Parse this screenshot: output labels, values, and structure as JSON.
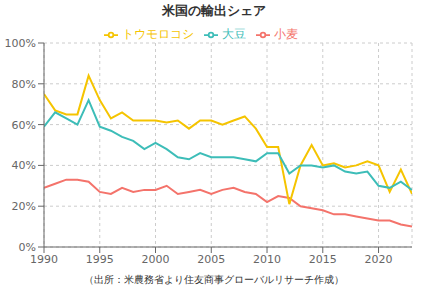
{
  "chart_data": {
    "type": "line",
    "title": "米国の輸出シェア",
    "subtitle": "（出所：米農務省より住友商事グローバルリサーチ作成）",
    "x": [
      1990,
      1991,
      1992,
      1993,
      1994,
      1995,
      1996,
      1997,
      1998,
      1999,
      2000,
      2001,
      2002,
      2003,
      2004,
      2005,
      2006,
      2007,
      2008,
      2009,
      2010,
      2011,
      2012,
      2013,
      2014,
      2015,
      2016,
      2017,
      2018,
      2019,
      2020,
      2021,
      2022,
      2023
    ],
    "series": [
      {
        "name": "小麦",
        "color": "#f4736b",
        "values": [
          29,
          31,
          33,
          33,
          32,
          27,
          26,
          29,
          27,
          28,
          28,
          30,
          26,
          27,
          28,
          26,
          28,
          29,
          27,
          26,
          22,
          25,
          24,
          20,
          19,
          18,
          16,
          16,
          15,
          14,
          13,
          13,
          11,
          10
        ]
      },
      {
        "name": "トウモロコシ",
        "color": "#f5c400",
        "values": [
          75,
          67,
          65,
          65,
          84,
          72,
          63,
          66,
          62,
          62,
          62,
          61,
          62,
          58,
          62,
          62,
          60,
          62,
          64,
          58,
          49,
          49,
          21,
          40,
          50,
          40,
          41,
          39,
          40,
          42,
          40,
          27,
          38,
          26
        ]
      },
      {
        "name": "大豆",
        "color": "#3dbdb8",
        "values": [
          59,
          66,
          63,
          60,
          72,
          59,
          57,
          54,
          52,
          48,
          51,
          48,
          44,
          43,
          46,
          44,
          44,
          44,
          43,
          42,
          46,
          46,
          36,
          40,
          40,
          39,
          40,
          37,
          36,
          37,
          30,
          29,
          32,
          28
        ]
      }
    ],
    "xlim": [
      1990,
      2023
    ],
    "xticks": [
      1990,
      1995,
      2000,
      2005,
      2010,
      2015,
      2020
    ],
    "ylim": [
      0,
      100
    ],
    "yticks": [
      {
        "value": 0,
        "label": "0%"
      },
      {
        "value": 20,
        "label": "20%"
      },
      {
        "value": 40,
        "label": "40%"
      },
      {
        "value": 60,
        "label": "60%"
      },
      {
        "value": 80,
        "label": "80%"
      },
      {
        "value": 100,
        "label": "100%"
      }
    ],
    "grid": true,
    "legend": "top"
  }
}
